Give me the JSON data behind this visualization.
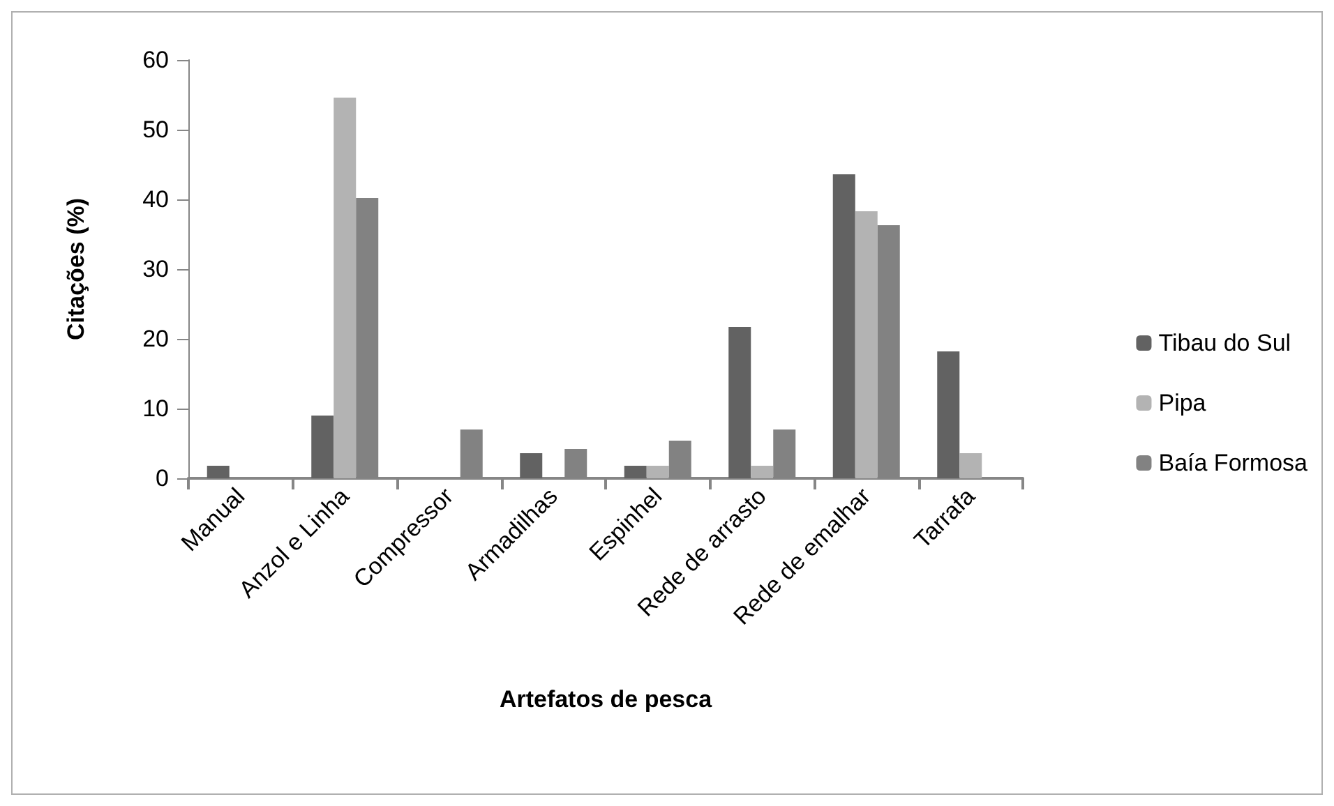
{
  "chart_data": {
    "type": "bar",
    "xlabel": "Artefatos de pesca",
    "ylabel": "Citações (%)",
    "categories": [
      "Manual",
      "Anzol e Linha",
      "Compressor",
      "Armadilhas",
      "Espinhel",
      "Rede de arrasto",
      "Rede de emalhar",
      "Tarrafa"
    ],
    "series": [
      {
        "name": "Tibau do Sul",
        "color": "#626262",
        "values": [
          1.8,
          9,
          0,
          3.6,
          1.8,
          21.7,
          43.6,
          18.2
        ]
      },
      {
        "name": "Pipa",
        "color": "#b3b3b3",
        "values": [
          0,
          54.6,
          0,
          0,
          1.8,
          1.8,
          38.3,
          3.6
        ]
      },
      {
        "name": "Baía Formosa",
        "color": "#828282",
        "values": [
          0,
          40.2,
          7,
          4.2,
          5.4,
          7,
          36.3,
          0
        ]
      }
    ],
    "ylim": [
      0,
      60
    ],
    "yticks": [
      0,
      10,
      20,
      30,
      40,
      50,
      60
    ],
    "grid": false,
    "legend": "right"
  }
}
